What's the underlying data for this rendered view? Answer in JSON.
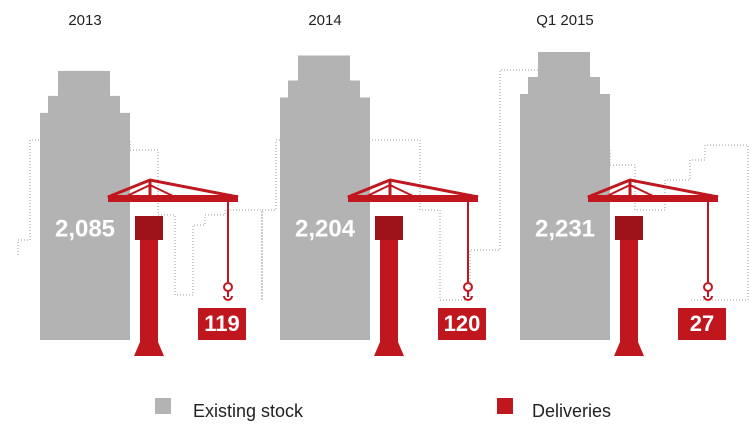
{
  "chart_data": {
    "type": "pictorial-bar",
    "categories": [
      "2013",
      "2014",
      "Q1 2015"
    ],
    "series": [
      {
        "name": "Existing stock",
        "color": "#b3b3b3",
        "values": [
          2085,
          2204,
          2231
        ],
        "value_labels": [
          "2,085",
          "2,204",
          "2,231"
        ]
      },
      {
        "name": "Deliveries",
        "color": "#c0171f",
        "values": [
          119,
          120,
          27
        ]
      }
    ]
  }
}
